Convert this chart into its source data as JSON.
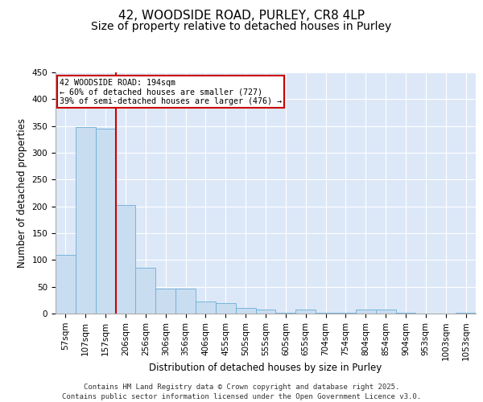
{
  "title_line1": "42, WOODSIDE ROAD, PURLEY, CR8 4LP",
  "title_line2": "Size of property relative to detached houses in Purley",
  "xlabel": "Distribution of detached houses by size in Purley",
  "ylabel": "Number of detached properties",
  "categories": [
    "57sqm",
    "107sqm",
    "157sqm",
    "206sqm",
    "256sqm",
    "306sqm",
    "356sqm",
    "406sqm",
    "455sqm",
    "505sqm",
    "555sqm",
    "605sqm",
    "655sqm",
    "704sqm",
    "754sqm",
    "804sqm",
    "854sqm",
    "904sqm",
    "953sqm",
    "1003sqm",
    "1053sqm"
  ],
  "values": [
    110,
    348,
    345,
    203,
    85,
    46,
    46,
    22,
    20,
    10,
    7,
    1,
    7,
    1,
    1,
    8,
    7,
    1,
    0,
    0,
    2
  ],
  "bar_color": "#c9ddf0",
  "bar_edge_color": "#6aaed6",
  "background_color": "#dce8f8",
  "grid_color": "#ffffff",
  "ref_line_x": 2.5,
  "annotation_text": "42 WOODSIDE ROAD: 194sqm\n← 60% of detached houses are smaller (727)\n39% of semi-detached houses are larger (476) →",
  "annotation_box_color": "#ffffff",
  "annotation_box_edge_color": "#cc0000",
  "ref_line_color": "#cc0000",
  "ylim": [
    0,
    450
  ],
  "yticks": [
    0,
    50,
    100,
    150,
    200,
    250,
    300,
    350,
    400,
    450
  ],
  "footer": "Contains HM Land Registry data © Crown copyright and database right 2025.\nContains public sector information licensed under the Open Government Licence v3.0.",
  "title_fontsize": 11,
  "subtitle_fontsize": 10,
  "label_fontsize": 8.5,
  "tick_fontsize": 7.5,
  "footer_fontsize": 6.5
}
